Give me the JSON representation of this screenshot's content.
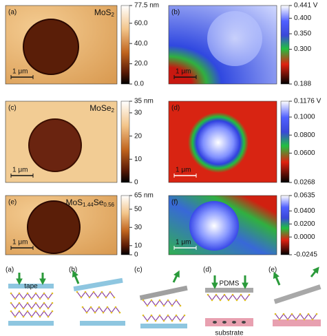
{
  "maps": [
    {
      "label": "(a)",
      "title": [
        "MoS",
        "2"
      ],
      "scale_bar": "1 μm",
      "colorbar_ticks": [
        "77.5 nm",
        "60.0",
        "40.0",
        "20.0",
        "0.0"
      ]
    },
    {
      "label": "(b)",
      "scale_bar": "1 μm",
      "colorbar_ticks": [
        "0.441 V",
        "0.400",
        "0.350",
        "0.300",
        "0.188"
      ]
    },
    {
      "label": "(c)",
      "title": [
        "MoSe",
        "2"
      ],
      "scale_bar": "1 μm",
      "colorbar_ticks": [
        "35 nm",
        "30",
        "20",
        "10",
        "0"
      ]
    },
    {
      "label": "(d)",
      "scale_bar": "1 μm",
      "colorbar_ticks": [
        "0.1176 V",
        "0.1000",
        "0.0800",
        "0.0600",
        "0.0268"
      ]
    },
    {
      "label": "(e)",
      "title": [
        "MoS",
        "1.44",
        "Se",
        "0.56"
      ],
      "scale_bar": "1 μm",
      "colorbar_ticks": [
        "65 nm",
        "50",
        "30",
        "10",
        "0"
      ]
    },
    {
      "label": "(f)",
      "scale_bar": "1 μm",
      "colorbar_ticks": [
        "0.0635",
        "0.0400",
        "0.0200",
        "0.0000",
        "-0.0245"
      ]
    }
  ],
  "schematic": {
    "labels": [
      "(a)",
      "(b)",
      "(c)",
      "(d)",
      "(e)"
    ],
    "tape": "tape",
    "pdms": "PDMS",
    "substrate": "substrate"
  }
}
